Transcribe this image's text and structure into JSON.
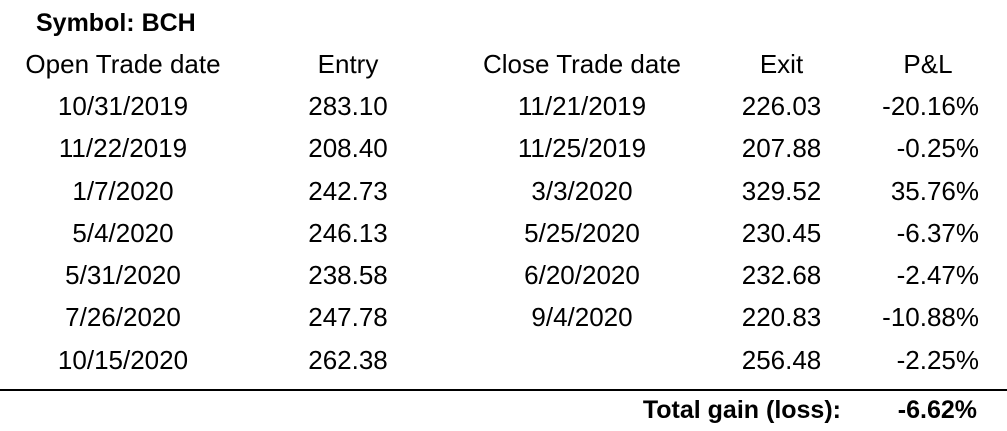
{
  "title": "Symbol: BCH",
  "columns": [
    "Open Trade date",
    "Entry",
    "Close Trade date",
    "Exit",
    "P&L"
  ],
  "rows": [
    {
      "open_date": "10/31/2019",
      "entry": "283.10",
      "close_date": "11/21/2019",
      "exit": "226.03",
      "pnl": "-20.16%"
    },
    {
      "open_date": "11/22/2019",
      "entry": "208.40",
      "close_date": "11/25/2019",
      "exit": "207.88",
      "pnl": "-0.25%"
    },
    {
      "open_date": "1/7/2020",
      "entry": "242.73",
      "close_date": "3/3/2020",
      "exit": "329.52",
      "pnl": "35.76%"
    },
    {
      "open_date": "5/4/2020",
      "entry": "246.13",
      "close_date": "5/25/2020",
      "exit": "230.45",
      "pnl": "-6.37%"
    },
    {
      "open_date": "5/31/2020",
      "entry": "238.58",
      "close_date": "6/20/2020",
      "exit": "232.68",
      "pnl": "-2.47%"
    },
    {
      "open_date": "7/26/2020",
      "entry": "247.78",
      "close_date": "9/4/2020",
      "exit": "220.83",
      "pnl": "-10.88%"
    },
    {
      "open_date": "10/15/2020",
      "entry": "262.38",
      "close_date": "",
      "exit": "256.48",
      "pnl": "-2.25%"
    }
  ],
  "total": {
    "label": "Total gain (loss):",
    "value": "-6.62%"
  }
}
